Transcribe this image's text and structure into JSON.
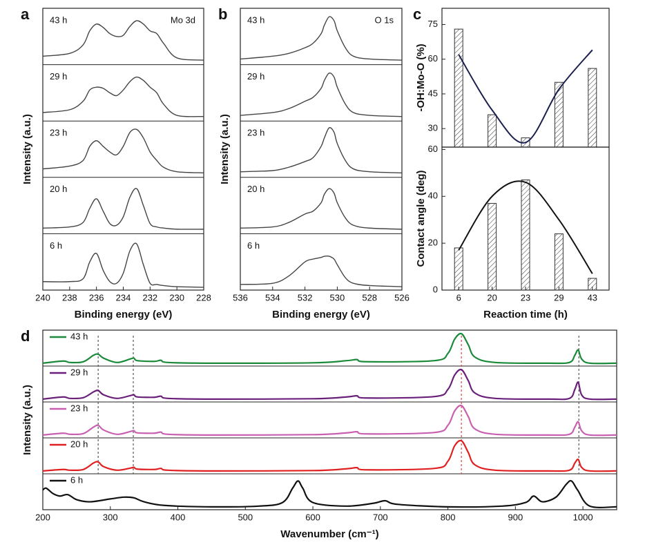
{
  "chart_data": [
    {
      "type": "line",
      "panel": "a",
      "annotation": "Mo 3d",
      "xlabel": "Binding energy (eV)",
      "ylabel": "Intensity (a.u.)",
      "xlim": [
        240,
        228
      ],
      "xticks": [
        240,
        238,
        236,
        234,
        232,
        230,
        228
      ],
      "ylim": [
        0,
        1
      ],
      "x": [
        240,
        238,
        237,
        236.5,
        236,
        235.5,
        235,
        234.5,
        234,
        233.5,
        233,
        232.5,
        232,
        231.5,
        231,
        230,
        228
      ],
      "series": [
        {
          "name": "43 h",
          "color": "#444444",
          "values": [
            0.15,
            0.2,
            0.35,
            0.6,
            0.72,
            0.66,
            0.55,
            0.5,
            0.52,
            0.68,
            0.78,
            0.72,
            0.6,
            0.55,
            0.38,
            0.12,
            0.08
          ]
        },
        {
          "name": "29 h",
          "color": "#444444",
          "values": [
            0.15,
            0.2,
            0.35,
            0.55,
            0.6,
            0.58,
            0.5,
            0.45,
            0.55,
            0.7,
            0.78,
            0.72,
            0.6,
            0.5,
            0.3,
            0.1,
            0.08
          ]
        },
        {
          "name": "23 h",
          "color": "#444444",
          "values": [
            0.15,
            0.2,
            0.3,
            0.55,
            0.65,
            0.55,
            0.45,
            0.4,
            0.55,
            0.8,
            0.85,
            0.7,
            0.45,
            0.3,
            0.18,
            0.1,
            0.08
          ]
        },
        {
          "name": "20 h",
          "color": "#444444",
          "values": [
            0.1,
            0.12,
            0.2,
            0.45,
            0.62,
            0.4,
            0.18,
            0.15,
            0.3,
            0.65,
            0.8,
            0.5,
            0.18,
            0.12,
            0.1,
            0.08,
            0.08
          ]
        },
        {
          "name": "6 h",
          "color": "#444444",
          "values": [
            0.15,
            0.15,
            0.2,
            0.5,
            0.65,
            0.35,
            0.15,
            0.12,
            0.3,
            0.7,
            0.82,
            0.45,
            0.12,
            0.1,
            0.08,
            0.06,
            0.05
          ]
        }
      ]
    },
    {
      "type": "line",
      "panel": "b",
      "annotation": "O 1s",
      "xlabel": "Binding energy (eV)",
      "ylabel": "Intensity (a.u.)",
      "xlim": [
        536,
        526
      ],
      "xticks": [
        536,
        534,
        532,
        530,
        528,
        526
      ],
      "ylim": [
        0,
        1
      ],
      "x": [
        536,
        534,
        533,
        532,
        531.5,
        531,
        530.8,
        530.5,
        530.2,
        530,
        529.5,
        529,
        528,
        526
      ],
      "series": [
        {
          "name": "43 h",
          "color": "#444444",
          "values": [
            0.1,
            0.15,
            0.2,
            0.3,
            0.38,
            0.55,
            0.7,
            0.85,
            0.78,
            0.6,
            0.3,
            0.15,
            0.1,
            0.08
          ]
        },
        {
          "name": "29 h",
          "color": "#444444",
          "values": [
            0.1,
            0.15,
            0.22,
            0.35,
            0.42,
            0.58,
            0.72,
            0.85,
            0.78,
            0.6,
            0.3,
            0.15,
            0.1,
            0.08
          ]
        },
        {
          "name": "23 h",
          "color": "#444444",
          "values": [
            0.1,
            0.12,
            0.18,
            0.28,
            0.35,
            0.55,
            0.7,
            0.88,
            0.8,
            0.6,
            0.3,
            0.15,
            0.1,
            0.08
          ]
        },
        {
          "name": "20 h",
          "color": "#444444",
          "values": [
            0.1,
            0.12,
            0.2,
            0.35,
            0.4,
            0.55,
            0.7,
            0.8,
            0.72,
            0.55,
            0.28,
            0.15,
            0.1,
            0.08
          ]
        },
        {
          "name": "6 h",
          "color": "#444444",
          "values": [
            0.1,
            0.12,
            0.25,
            0.5,
            0.55,
            0.58,
            0.6,
            0.6,
            0.55,
            0.45,
            0.22,
            0.12,
            0.08,
            0.06
          ]
        }
      ]
    },
    {
      "type": "bar",
      "panel": "c",
      "ylabel": "-OH:Mo-O (%)",
      "categories": [
        "6",
        "20",
        "23",
        "29",
        "43"
      ],
      "values": [
        73,
        36,
        26,
        50,
        56
      ],
      "curve": [
        62,
        38,
        24,
        47,
        64
      ],
      "curve_color": "#1a1f4e",
      "ylim": [
        22,
        82
      ],
      "yticks": [
        30,
        45,
        60,
        75
      ]
    },
    {
      "type": "bar",
      "ylabel": "Contact angle (deg)",
      "xlabel": "Reaction time (h)",
      "categories": [
        "6",
        "20",
        "23",
        "29",
        "43"
      ],
      "values": [
        18,
        37,
        47,
        24,
        5
      ],
      "curve": [
        17,
        40,
        46,
        30,
        7
      ],
      "curve_color": "#111111",
      "ylim": [
        0,
        61
      ],
      "yticks": [
        0,
        20,
        40,
        60
      ]
    },
    {
      "type": "line",
      "panel": "d",
      "xlabel": "Wavenumber (cm⁻¹)",
      "ylabel": "Intensity (a.u.)",
      "xlim": [
        200,
        1050
      ],
      "xticks": [
        200,
        300,
        400,
        500,
        600,
        700,
        800,
        900,
        1000
      ],
      "ylim": [
        0,
        1
      ],
      "legend_marks": true,
      "reference_lines": [
        {
          "value": 282,
          "color": "#555555"
        },
        {
          "value": 334,
          "color": "#555555"
        },
        {
          "value": 820,
          "color": "#e04040"
        },
        {
          "value": 994,
          "color": "#555555"
        }
      ],
      "series": [
        {
          "name": "43 h",
          "color": "#1a8a3a",
          "x": [
            200,
            230,
            240,
            260,
            275,
            282,
            290,
            310,
            330,
            335,
            340,
            365,
            375,
            385,
            450,
            600,
            650,
            665,
            680,
            780,
            800,
            810,
            820,
            830,
            840,
            870,
            950,
            980,
            988,
            993,
            998,
            1010,
            1050
          ],
          "values": [
            0.08,
            0.14,
            0.1,
            0.12,
            0.3,
            0.33,
            0.22,
            0.1,
            0.2,
            0.22,
            0.15,
            0.13,
            0.16,
            0.1,
            0.08,
            0.09,
            0.15,
            0.18,
            0.12,
            0.15,
            0.35,
            0.75,
            0.9,
            0.6,
            0.25,
            0.1,
            0.08,
            0.1,
            0.3,
            0.45,
            0.2,
            0.08,
            0.08
          ]
        },
        {
          "name": "29 h",
          "color": "#6a1f7a",
          "x": [
            200,
            230,
            240,
            260,
            275,
            282,
            290,
            310,
            330,
            335,
            340,
            365,
            375,
            385,
            450,
            600,
            650,
            665,
            680,
            780,
            800,
            810,
            820,
            830,
            840,
            870,
            950,
            980,
            988,
            993,
            998,
            1010,
            1050
          ],
          "values": [
            0.08,
            0.14,
            0.1,
            0.12,
            0.28,
            0.32,
            0.2,
            0.1,
            0.18,
            0.2,
            0.14,
            0.13,
            0.16,
            0.1,
            0.08,
            0.09,
            0.14,
            0.17,
            0.11,
            0.15,
            0.35,
            0.75,
            0.9,
            0.6,
            0.25,
            0.1,
            0.08,
            0.1,
            0.35,
            0.55,
            0.2,
            0.08,
            0.08
          ]
        },
        {
          "name": "23 h",
          "color": "#c85fb0",
          "x": [
            200,
            230,
            240,
            260,
            275,
            282,
            290,
            310,
            330,
            335,
            340,
            365,
            375,
            385,
            450,
            600,
            650,
            665,
            680,
            780,
            800,
            810,
            820,
            830,
            840,
            870,
            950,
            980,
            988,
            993,
            998,
            1010,
            1050
          ],
          "values": [
            0.08,
            0.13,
            0.1,
            0.12,
            0.3,
            0.35,
            0.22,
            0.1,
            0.18,
            0.2,
            0.14,
            0.13,
            0.16,
            0.1,
            0.08,
            0.09,
            0.14,
            0.17,
            0.11,
            0.15,
            0.35,
            0.75,
            0.9,
            0.6,
            0.25,
            0.1,
            0.08,
            0.1,
            0.3,
            0.45,
            0.2,
            0.08,
            0.08
          ]
        },
        {
          "name": "20 h",
          "color": "#e02020",
          "x": [
            200,
            230,
            240,
            260,
            275,
            282,
            290,
            310,
            330,
            335,
            340,
            365,
            375,
            385,
            450,
            600,
            650,
            665,
            680,
            780,
            800,
            810,
            820,
            830,
            840,
            870,
            950,
            980,
            988,
            993,
            998,
            1010,
            1050
          ],
          "values": [
            0.08,
            0.12,
            0.1,
            0.12,
            0.3,
            0.33,
            0.2,
            0.1,
            0.16,
            0.18,
            0.13,
            0.12,
            0.15,
            0.1,
            0.08,
            0.09,
            0.14,
            0.17,
            0.11,
            0.15,
            0.35,
            0.78,
            0.92,
            0.6,
            0.25,
            0.1,
            0.08,
            0.1,
            0.3,
            0.4,
            0.18,
            0.08,
            0.08
          ]
        },
        {
          "name": "6 h",
          "color": "#111111",
          "x": [
            200,
            205,
            215,
            225,
            237,
            250,
            270,
            300,
            320,
            335,
            350,
            380,
            450,
            520,
            555,
            570,
            578,
            585,
            600,
            650,
            690,
            707,
            725,
            800,
            880,
            915,
            927,
            940,
            960,
            975,
            983,
            992,
            1010,
            1050
          ],
          "values": [
            0.55,
            0.6,
            0.45,
            0.38,
            0.42,
            0.28,
            0.22,
            0.3,
            0.35,
            0.33,
            0.22,
            0.12,
            0.08,
            0.1,
            0.2,
            0.6,
            0.8,
            0.6,
            0.2,
            0.1,
            0.18,
            0.25,
            0.15,
            0.08,
            0.1,
            0.2,
            0.38,
            0.22,
            0.35,
            0.7,
            0.8,
            0.55,
            0.1,
            0.08
          ]
        }
      ]
    }
  ]
}
